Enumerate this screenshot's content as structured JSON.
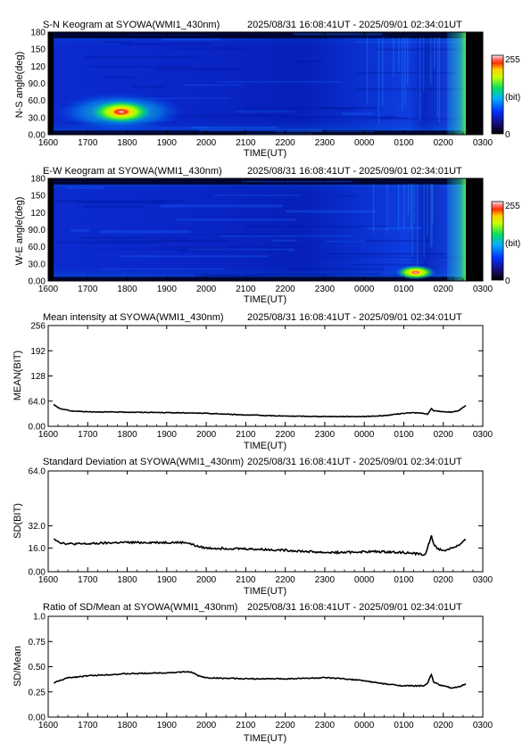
{
  "page": {
    "station": "SYOWA",
    "instrument": "WMI1_430nm"
  },
  "chart_data": [
    {
      "id": "sn",
      "type": "heatmap",
      "title": "S-N Keogram at SYOWA(WMI1_430nm)",
      "time_range_text": "2025/08/31 16:08:41UT - 2025/09/01 02:34:01UT",
      "xlabel": "TIME(UT)",
      "ylabel": "N-S angle(deg)",
      "x_ticks": [
        "1600",
        "1700",
        "1800",
        "1900",
        "2000",
        "2100",
        "2200",
        "2300",
        "0000",
        "0100",
        "0200",
        "0300"
      ],
      "y_ticks": [
        "0.00",
        "30.0",
        "60.0",
        "90.0",
        "120",
        "150",
        "180"
      ],
      "y_range": [
        0,
        180
      ],
      "x_range_hours": [
        0,
        11
      ],
      "data_x_range_hours": [
        0.14,
        10.57
      ],
      "colorbar": {
        "max_label": "255",
        "unit_label": "(bit)",
        "min_label": "0",
        "range": [
          0,
          255
        ]
      },
      "features": [
        {
          "desc": "aurora brightening",
          "time_h": 1.85,
          "angle": 40,
          "value": 255
        },
        {
          "desc": "bright band",
          "time_start_h": 0.14,
          "time_end_h": 3.5,
          "angle": 40,
          "value": 150
        },
        {
          "desc": "dawn brightening",
          "time_start_h": 10.1,
          "time_end_h": 10.57,
          "angle": 120,
          "value": 130
        }
      ]
    },
    {
      "id": "ew",
      "type": "heatmap",
      "title": "E-W Keogram at SYOWA(WMI1_430nm)",
      "time_range_text": "2025/08/31 16:08:41UT - 2025/09/01 02:34:01UT",
      "xlabel": "TIME(UT)",
      "ylabel": "W-E angle(deg)",
      "x_ticks": [
        "1600",
        "1700",
        "1800",
        "1900",
        "2000",
        "2100",
        "2200",
        "2300",
        "0000",
        "0100",
        "0200",
        "0300"
      ],
      "y_ticks": [
        "0.00",
        "30.0",
        "60.0",
        "90.0",
        "120",
        "150",
        "180"
      ],
      "y_range": [
        0,
        180
      ],
      "x_range_hours": [
        0,
        11
      ],
      "data_x_range_hours": [
        0.14,
        10.57
      ],
      "colorbar": {
        "max_label": "255",
        "unit_label": "(bit)",
        "min_label": "0",
        "range": [
          0,
          255
        ]
      },
      "features": [
        {
          "desc": "bright spot",
          "time_h": 9.3,
          "angle": 15,
          "value": 255
        },
        {
          "desc": "dawn brightening",
          "time_start_h": 10.1,
          "time_end_h": 10.57,
          "angle": 90,
          "value": 130
        }
      ]
    },
    {
      "id": "mean",
      "type": "line",
      "title": "Mean intensity at SYOWA(WMI1_430nm)",
      "time_range_text": "2025/08/31 16:08:41UT - 2025/09/01 02:34:01UT",
      "xlabel": "TIME(UT)",
      "ylabel": "MEAN(BIT)",
      "x_ticks": [
        "1600",
        "1700",
        "1800",
        "1900",
        "2000",
        "2100",
        "2200",
        "2300",
        "0000",
        "0100",
        "0200",
        "0300"
      ],
      "y_ticks": [
        "0.00",
        "64.0",
        "128",
        "192",
        "256"
      ],
      "ylim": [
        0,
        256
      ],
      "x_range_hours": [
        0,
        11
      ],
      "noise": 0.8,
      "series": [
        {
          "x": [
            0.14,
            0.3,
            0.6,
            1.0,
            2.0,
            3.0,
            3.5,
            4.0,
            5.0,
            6.0,
            7.0,
            7.5,
            8.0,
            8.5,
            9.0,
            9.2,
            9.5,
            9.6,
            9.7,
            9.75,
            9.9,
            10.2,
            10.4,
            10.57
          ],
          "y": [
            55,
            45,
            39,
            37,
            36,
            35,
            34,
            33,
            29,
            26,
            25,
            25,
            25,
            27,
            33,
            35,
            33,
            30,
            45,
            40,
            38,
            36,
            40,
            53
          ]
        }
      ]
    },
    {
      "id": "sd",
      "type": "line",
      "title": "Standard Deviation at SYOWA(WMI1_430nm)",
      "time_range_text": "2025/08/31 16:08:41UT - 2025/09/01 02:34:01UT",
      "xlabel": "TIME(UT)",
      "ylabel": "SD(BIT)",
      "x_ticks": [
        "1600",
        "1700",
        "1800",
        "1900",
        "2000",
        "2100",
        "2200",
        "2300",
        "0000",
        "0100",
        "0200",
        "0300"
      ],
      "y_ticks": [
        "0.00",
        "16.0",
        "32.0",
        "64.0"
      ],
      "ylim": [
        0,
        64
      ],
      "x_range_hours": [
        0,
        11
      ],
      "noise": 0.7,
      "series": [
        {
          "x": [
            0.14,
            0.3,
            0.5,
            1.0,
            1.8,
            2.5,
            3.5,
            3.8,
            4.0,
            5.0,
            6.0,
            7.0,
            7.5,
            8.0,
            8.5,
            9.0,
            9.4,
            9.55,
            9.7,
            9.75,
            9.85,
            10.0,
            10.2,
            10.4,
            10.57
          ],
          "y": [
            23,
            20,
            19,
            19,
            20,
            20,
            20,
            17,
            16,
            15.5,
            14.5,
            13,
            13,
            13.5,
            13.5,
            13,
            12,
            11.5,
            25,
            19,
            16,
            14,
            16,
            18,
            22
          ]
        }
      ]
    },
    {
      "id": "ratio",
      "type": "line",
      "title": "Ratio of SD/Mean at SYOWA(WMI1_430nm)",
      "time_range_text": "2025/08/31 16:08:41UT - 2025/09/01 02:34:01UT",
      "xlabel": "TIME(UT)",
      "ylabel": "SD/Mean",
      "x_ticks": [
        "1600",
        "1700",
        "1800",
        "1900",
        "2000",
        "2100",
        "2200",
        "2300",
        "0000",
        "0100",
        "0200",
        "0300"
      ],
      "y_ticks": [
        "0.00",
        "0.25",
        "0.50",
        "0.75",
        "1.0"
      ],
      "ylim": [
        0,
        1
      ],
      "x_range_hours": [
        0,
        11
      ],
      "noise": 0.005,
      "series": [
        {
          "x": [
            0.14,
            0.5,
            1.0,
            2.0,
            3.0,
            3.6,
            3.8,
            4.0,
            5.0,
            6.0,
            7.0,
            7.5,
            8.0,
            8.5,
            9.0,
            9.5,
            9.6,
            9.7,
            9.75,
            9.9,
            10.2,
            10.4,
            10.57
          ],
          "y": [
            0.34,
            0.39,
            0.41,
            0.43,
            0.44,
            0.45,
            0.41,
            0.39,
            0.38,
            0.38,
            0.39,
            0.38,
            0.36,
            0.33,
            0.31,
            0.31,
            0.34,
            0.42,
            0.35,
            0.32,
            0.29,
            0.3,
            0.33
          ]
        }
      ]
    }
  ]
}
